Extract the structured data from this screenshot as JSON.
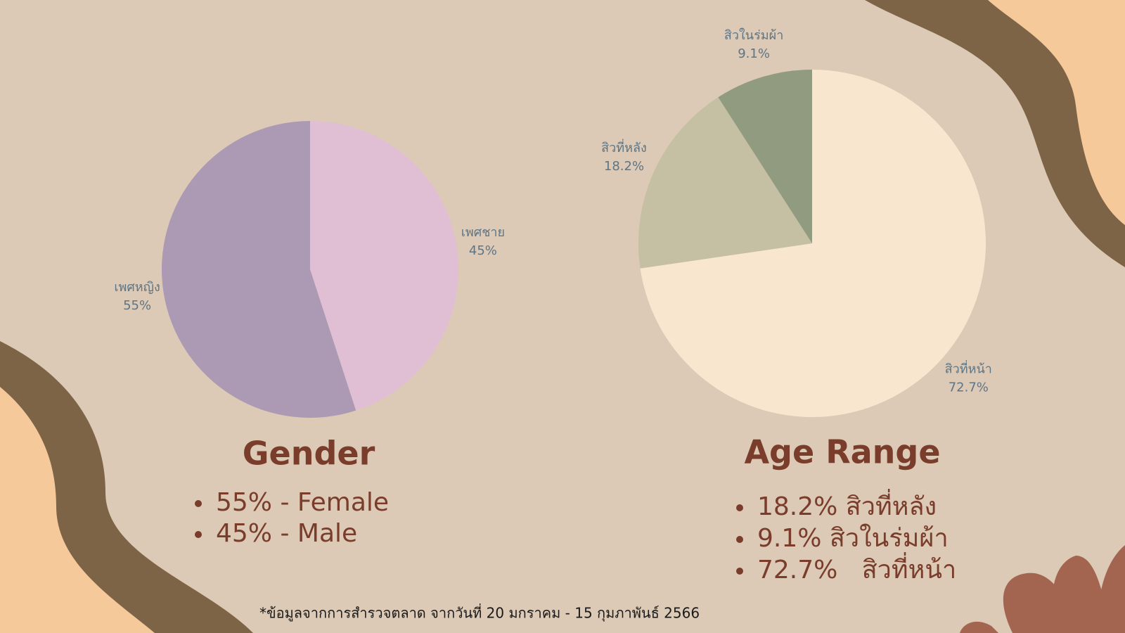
{
  "chart_data": [
    {
      "type": "pie",
      "title": "Gender",
      "categories": [
        "เพศชาย",
        "เพศหญิง"
      ],
      "values": [
        45,
        55
      ],
      "value_labels": [
        "45%",
        "55%"
      ],
      "colors": [
        "#e0bfd5",
        "#ac99b4"
      ],
      "bullets": [
        "55% - Female",
        "45% - Male"
      ]
    },
    {
      "type": "pie",
      "title": "Age Range",
      "categories": [
        "สิวที่หน้า",
        "สิวที่หลัง",
        "สิวในร่มผ้า"
      ],
      "values": [
        72.7,
        18.2,
        9.1
      ],
      "value_labels": [
        "72.7%",
        "18.2%",
        "9.1%"
      ],
      "colors": [
        "#f8e6cf",
        "#c5c0a3",
        "#919b80"
      ],
      "bullets": [
        "18.2% สิวที่หลัง",
        "9.1% สิวในร่มผ้า",
        "72.7%   สิวที่หน้า"
      ]
    }
  ],
  "footnote": "*ข้อมูลจากการสำรวจตลาด จากวันที่ 20 มกราคม - 15 กุมภาพันธ์ 2566"
}
